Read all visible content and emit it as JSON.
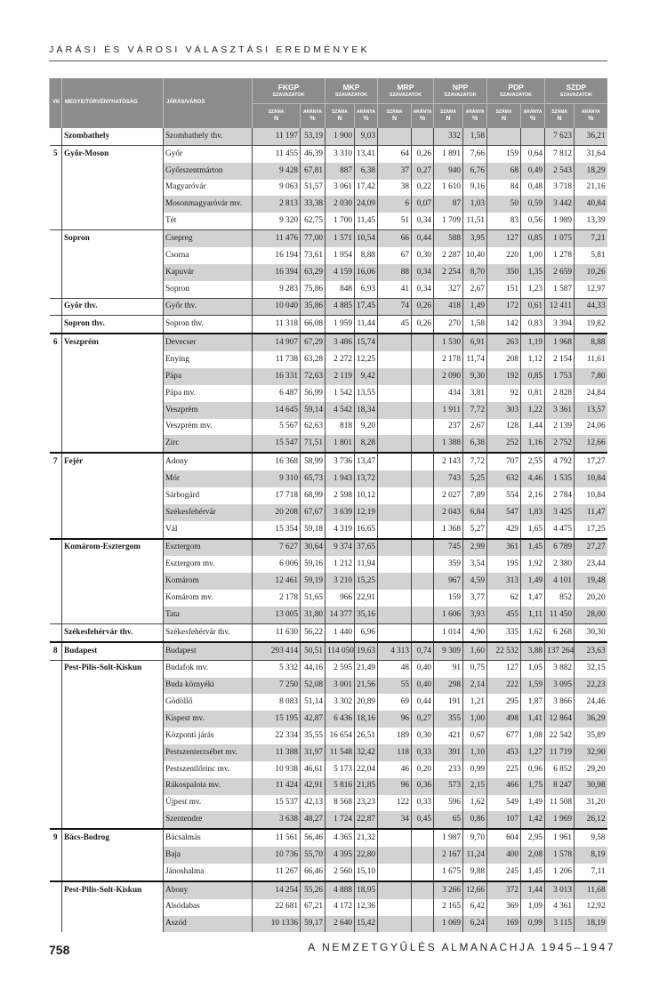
{
  "running_head": "JÁRÁSI ÉS VÁROSI VÁLASZTÁSI EREDMÉNYEK",
  "table": {
    "headers": {
      "vk": "VK",
      "megye": "MEGYE/TÖRVÉNYHATÓSÁG",
      "jaras": "JÁRÁS/VÁROS",
      "votes": "SZAVAZATOK",
      "count": "SZÁMA",
      "count_unit": "N",
      "ratio": "ARÁNYA",
      "ratio_unit": "%",
      "parties": [
        "FKGP",
        "MKP",
        "MRP",
        "NPP",
        "PDP",
        "SZDP"
      ]
    },
    "rows": [
      [
        "",
        "Szombathely",
        "Szombathely thv.",
        "11 197",
        "53,19",
        "1 900",
        "9,03",
        "",
        "",
        "332",
        "1,58",
        "",
        "",
        "7 623",
        "36,21"
      ],
      [
        "5",
        "Győr-Moson",
        "Győr",
        "11 455",
        "46,39",
        "3 310",
        "13,41",
        "64",
        "0,26",
        "1 891",
        "7,66",
        "159",
        "0,64",
        "7 812",
        "31,64"
      ],
      [
        "",
        "",
        "Győrszentmárton",
        "9 428",
        "67,81",
        "887",
        "6,38",
        "37",
        "0,27",
        "940",
        "6,76",
        "68",
        "0,49",
        "2 543",
        "18,29"
      ],
      [
        "",
        "",
        "Magyaróvár",
        "9 063",
        "51,57",
        "3 061",
        "17,42",
        "38",
        "0,22",
        "1 610",
        "9,16",
        "84",
        "0,48",
        "3 718",
        "21,16"
      ],
      [
        "",
        "",
        "Mosonmagyaróvár mv.",
        "2 813",
        "33,38",
        "2 030",
        "24,09",
        "6",
        "0,07",
        "87",
        "1,03",
        "50",
        "0,59",
        "3 442",
        "40,84"
      ],
      [
        "",
        "",
        "Tét",
        "9 320",
        "62,75",
        "1 700",
        "11,45",
        "51",
        "0,34",
        "1 709",
        "11,51",
        "83",
        "0,56",
        "1 989",
        "13,39"
      ],
      [
        "",
        "Sopron",
        "Csepreg",
        "11 476",
        "77,00",
        "1 571",
        "10,54",
        "66",
        "0,44",
        "588",
        "3,95",
        "127",
        "0,85",
        "1 075",
        "7,21"
      ],
      [
        "",
        "",
        "Csorna",
        "16 194",
        "73,61",
        "1 954",
        "8,88",
        "67",
        "0,30",
        "2 287",
        "10,40",
        "220",
        "1,00",
        "1 278",
        "5,81"
      ],
      [
        "",
        "",
        "Kapuvár",
        "16 394",
        "63,29",
        "4 159",
        "16,06",
        "88",
        "0,34",
        "2 254",
        "8,70",
        "350",
        "1,35",
        "2 659",
        "10,26"
      ],
      [
        "",
        "",
        "Sopron",
        "9 283",
        "75,86",
        "848",
        "6,93",
        "41",
        "0,34",
        "327",
        "2,67",
        "151",
        "1,23",
        "1 587",
        "12,97"
      ],
      [
        "",
        "Győr thv.",
        "Győr thv.",
        "10 040",
        "35,86",
        "4 885",
        "17,45",
        "74",
        "0,26",
        "418",
        "1,49",
        "172",
        "0,61",
        "12 411",
        "44,33"
      ],
      [
        "",
        "Sopron thv.",
        "Sopron thv.",
        "11 318",
        "66,08",
        "1 959",
        "11,44",
        "45",
        "0,26",
        "270",
        "1,58",
        "142",
        "0,83",
        "3 394",
        "19,82"
      ],
      [
        "6",
        "Veszprém",
        "Devecser",
        "14 907",
        "67,29",
        "3 486",
        "15,74",
        "",
        "",
        "1 530",
        "6,91",
        "263",
        "1,19",
        "1 968",
        "8,88"
      ],
      [
        "",
        "",
        "Enying",
        "11 738",
        "63,28",
        "2 272",
        "12,25",
        "",
        "",
        "2 178",
        "11,74",
        "208",
        "1,12",
        "2 154",
        "11,61"
      ],
      [
        "",
        "",
        "Pápa",
        "16 331",
        "72,63",
        "2 119",
        "9,42",
        "",
        "",
        "2 090",
        "9,30",
        "192",
        "0,85",
        "1 753",
        "7,80"
      ],
      [
        "",
        "",
        "Pápa mv.",
        "6 487",
        "56,99",
        "1 542",
        "13,55",
        "",
        "",
        "434",
        "3,81",
        "92",
        "0,81",
        "2 828",
        "24,84"
      ],
      [
        "",
        "",
        "Veszprém",
        "14 645",
        "59,14",
        "4 542",
        "18,34",
        "",
        "",
        "1 911",
        "7,72",
        "303",
        "1,22",
        "3 361",
        "13,57"
      ],
      [
        "",
        "",
        "Veszprém mv.",
        "5 567",
        "62,63",
        "818",
        "9,20",
        "",
        "",
        "237",
        "2,67",
        "128",
        "1,44",
        "2 139",
        "24,06"
      ],
      [
        "",
        "",
        "Zirc",
        "15 547",
        "71,51",
        "1 801",
        "8,28",
        "",
        "",
        "1 388",
        "6,38",
        "252",
        "1,16",
        "2 752",
        "12,66"
      ],
      [
        "7",
        "Fejér",
        "Adony",
        "16 368",
        "58,99",
        "3 736",
        "13,47",
        "",
        "",
        "2 143",
        "7,72",
        "707",
        "2,55",
        "4 792",
        "17,27"
      ],
      [
        "",
        "",
        "Mór",
        "9 310",
        "65,73",
        "1 943",
        "13,72",
        "",
        "",
        "743",
        "5,25",
        "632",
        "4,46",
        "1 535",
        "10,84"
      ],
      [
        "",
        "",
        "Sárbogárd",
        "17 718",
        "68,99",
        "2 598",
        "10,12",
        "",
        "",
        "2 027",
        "7,89",
        "554",
        "2,16",
        "2 784",
        "10,84"
      ],
      [
        "",
        "",
        "Székesfehérvár",
        "20 208",
        "67,67",
        "3 639",
        "12,19",
        "",
        "",
        "2 043",
        "6,84",
        "547",
        "1,83",
        "3 425",
        "11,47"
      ],
      [
        "",
        "",
        "Vál",
        "15 354",
        "59,18",
        "4 319",
        "16,65",
        "",
        "",
        "1 368",
        "5,27",
        "429",
        "1,65",
        "4 475",
        "17,25"
      ],
      [
        "",
        "Komárom-Esztergom",
        "Esztergom",
        "7 627",
        "30,64",
        "9 374",
        "37,65",
        "",
        "",
        "745",
        "2,99",
        "361",
        "1,45",
        "6 789",
        "27,27"
      ],
      [
        "",
        "",
        "Esztergom mv.",
        "6 006",
        "59,16",
        "1 212",
        "11,94",
        "",
        "",
        "359",
        "3,54",
        "195",
        "1,92",
        "2 380",
        "23,44"
      ],
      [
        "",
        "",
        "Komárom",
        "12 461",
        "59,19",
        "3 210",
        "15,25",
        "",
        "",
        "967",
        "4,59",
        "313",
        "1,49",
        "4 101",
        "19,48"
      ],
      [
        "",
        "",
        "Komárom mv.",
        "2 178",
        "51,65",
        "966",
        "22,91",
        "",
        "",
        "159",
        "3,77",
        "62",
        "1,47",
        "852",
        "20,20"
      ],
      [
        "",
        "",
        "Tata",
        "13 005",
        "31,80",
        "14 377",
        "35,16",
        "",
        "",
        "1 606",
        "3,93",
        "455",
        "1,11",
        "11 450",
        "28,00"
      ],
      [
        "",
        "Székesfehérvár thv.",
        "Székesfehérvár thv.",
        "11 630",
        "56,22",
        "1 440",
        "6,96",
        "",
        "",
        "1 014",
        "4,90",
        "335",
        "1,62",
        "6 268",
        "30,30"
      ],
      [
        "8",
        "Budapest",
        "Budapest",
        "293 414",
        "50,51",
        "114 050",
        "19,63",
        "4 313",
        "0,74",
        "9 309",
        "1,60",
        "22 532",
        "3,88",
        "137 264",
        "23,63"
      ],
      [
        "",
        "Pest-Pilis-Solt-Kiskun",
        "Budafok mv.",
        "5 332",
        "44,16",
        "2 595",
        "21,49",
        "48",
        "0,40",
        "91",
        "0,75",
        "127",
        "1,05",
        "3 882",
        "32,15"
      ],
      [
        "",
        "",
        "Buda környéki",
        "7 250",
        "52,08",
        "3 001",
        "21,56",
        "55",
        "0,40",
        "298",
        "2,14",
        "222",
        "1,59",
        "3 095",
        "22,23"
      ],
      [
        "",
        "",
        "Gödöllő",
        "8 083",
        "51,14",
        "3 302",
        "20,89",
        "69",
        "0,44",
        "191",
        "1,21",
        "295",
        "1,87",
        "3 866",
        "24,46"
      ],
      [
        "",
        "",
        "Kispest mv.",
        "15 195",
        "42,87",
        "6 436",
        "18,16",
        "96",
        "0,27",
        "355",
        "1,00",
        "498",
        "1,41",
        "12 864",
        "36,29"
      ],
      [
        "",
        "",
        "Központi járás",
        "22 334",
        "35,55",
        "16 654",
        "26,51",
        "189",
        "0,30",
        "421",
        "0,67",
        "677",
        "1,08",
        "22 542",
        "35,89"
      ],
      [
        "",
        "",
        "Pestszenterzsébet mv.",
        "11 388",
        "31,97",
        "11 548",
        "32,42",
        "118",
        "0,33",
        "391",
        "1,10",
        "453",
        "1,27",
        "11 719",
        "32,90"
      ],
      [
        "",
        "",
        "Pestszentlőrinc mv.",
        "10 938",
        "46,61",
        "5 173",
        "22,04",
        "46",
        "0,20",
        "233",
        "0,99",
        "225",
        "0,96",
        "6 852",
        "29,20"
      ],
      [
        "",
        "",
        "Rákospalota mv.",
        "11 424",
        "42,91",
        "5 816",
        "21,85",
        "96",
        "0,36",
        "573",
        "2,15",
        "466",
        "1,75",
        "8 247",
        "30,98"
      ],
      [
        "",
        "",
        "Újpest mv.",
        "15 537",
        "42,13",
        "8 568",
        "23,23",
        "122",
        "0,33",
        "596",
        "1,62",
        "549",
        "1,49",
        "11 508",
        "31,20"
      ],
      [
        "",
        "",
        "Szentendre",
        "3 638",
        "48,27",
        "1 724",
        "22,87",
        "34",
        "0,45",
        "65",
        "0,86",
        "107",
        "1,42",
        "1 969",
        "26,12"
      ],
      [
        "9",
        "Bács-Bodrog",
        "Bácsalmás",
        "11 561",
        "56,46",
        "4 365",
        "21,32",
        "",
        "",
        "1 987",
        "9,70",
        "604",
        "2,95",
        "1 961",
        "9,58"
      ],
      [
        "",
        "",
        "Baja",
        "10 736",
        "55,70",
        "4 395",
        "22,80",
        "",
        "",
        "2 167",
        "11,24",
        "400",
        "2,08",
        "1 578",
        "8,19"
      ],
      [
        "",
        "",
        "Jánoshalma",
        "11 267",
        "66,46",
        "2 560",
        "15,10",
        "",
        "",
        "1 675",
        "9,88",
        "245",
        "1,45",
        "1 206",
        "7,11"
      ],
      [
        "",
        "Pest-Pilis-Solt-Kiskun",
        "Abony",
        "14 254",
        "55,26",
        "4 888",
        "18,95",
        "",
        "",
        "3 266",
        "12,66",
        "372",
        "1,44",
        "3 013",
        "11,68"
      ],
      [
        "",
        "",
        "Alsódabas",
        "22 681",
        "67,21",
        "4 172",
        "12,36",
        "",
        "",
        "2 165",
        "6,42",
        "369",
        "1,09",
        "4 361",
        "12,92"
      ],
      [
        "",
        "",
        "Aszód",
        "10 1336",
        "59,17",
        "2 640",
        "15,42",
        "",
        "",
        "1 069",
        "6,24",
        "169",
        "0,99",
        "3 115",
        "18,19"
      ]
    ]
  },
  "footer": {
    "page_number": "758",
    "book_title": "A NEMZETGYŰLÉS ALMANACHJA 1945–1947"
  },
  "colors": {
    "header_bg": "#8c8c8c",
    "row_shade": "#d2d2d2"
  }
}
